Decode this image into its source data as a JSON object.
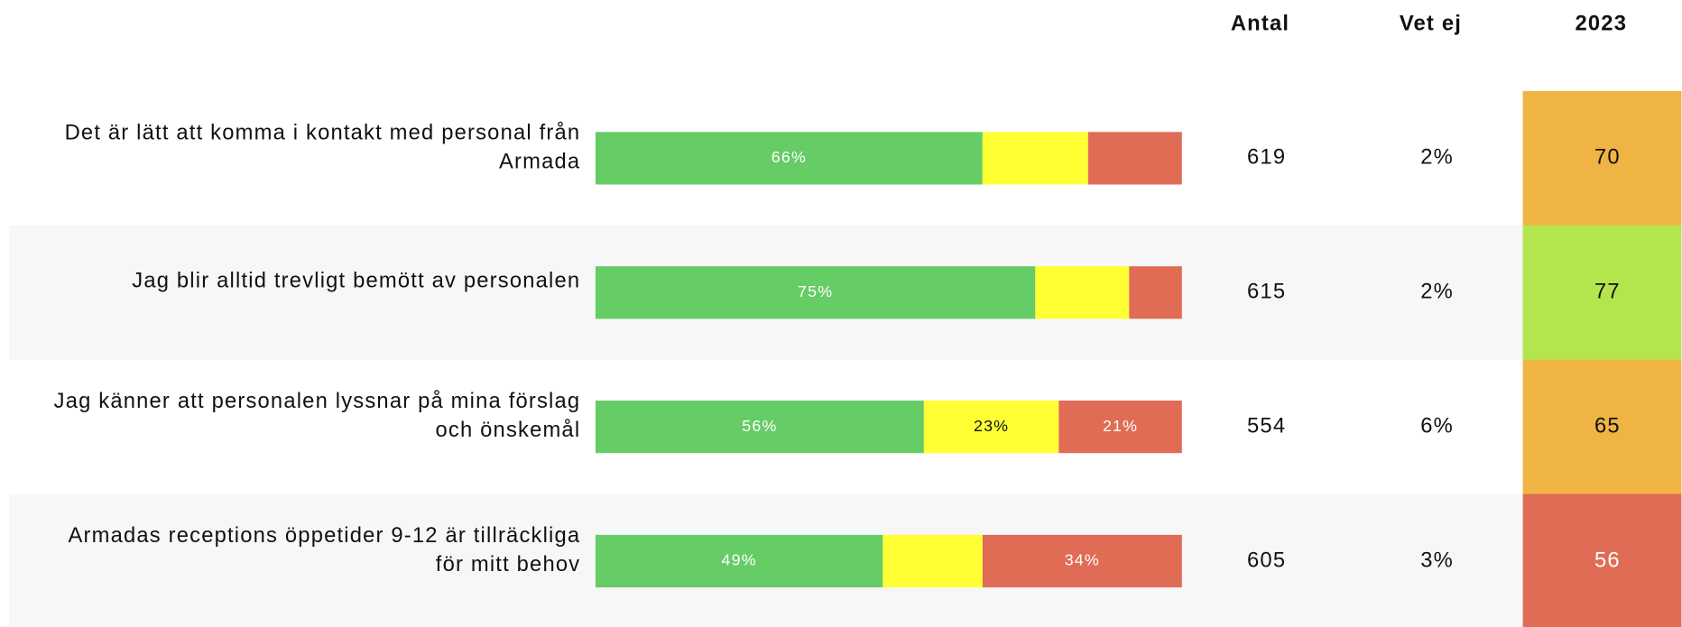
{
  "headers": [
    "Antal",
    "Vet ej",
    "2023"
  ],
  "rows": [
    {
      "label": [
        "Det är lätt att komma i kontakt med personal från",
        "Armada"
      ],
      "antal": "619",
      "vet_ej": "2%",
      "score": "70",
      "score_color": "#efb443",
      "score_text": "#111"
    },
    {
      "label": [
        "Jag blir alltid trevligt bemött av personalen"
      ],
      "antal": "615",
      "vet_ej": "2%",
      "score": "77",
      "score_color": "#b3e64d",
      "score_text": "#111"
    },
    {
      "label": [
        "Jag känner att personalen lyssnar på mina förslag",
        "och önskemål"
      ],
      "antal": "554",
      "vet_ej": "6%",
      "score": "65",
      "score_color": "#efb443",
      "score_text": "#111"
    },
    {
      "label": [
        "Armadas receptions öppetider 9-12 är tillräckliga",
        "för mitt behov"
      ],
      "antal": "605",
      "vet_ej": "3%",
      "score": "56",
      "score_color": "#e06c55",
      "score_text": "#fff"
    }
  ],
  "chart_data": {
    "type": "stacked-bar",
    "xlim": [
      0,
      100
    ],
    "series": [
      {
        "color": "#66cc66",
        "label_color": "#fff",
        "values": [
          66,
          75,
          56,
          49
        ],
        "value_labels": [
          "66%",
          "75%",
          "56%",
          "49%"
        ]
      },
      {
        "color": "#ffff33",
        "label_color": "#111",
        "values": [
          18,
          16,
          23,
          17
        ],
        "value_labels": [
          null,
          null,
          "23%",
          null
        ]
      },
      {
        "color": "#e06c55",
        "label_color": "#fff",
        "values": [
          16,
          9,
          21,
          34
        ],
        "value_labels": [
          null,
          null,
          "21%",
          "34%"
        ]
      }
    ]
  }
}
